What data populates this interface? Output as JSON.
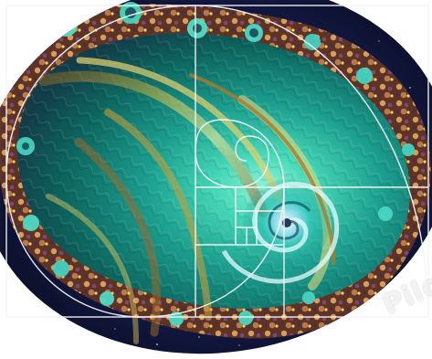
{
  "image": {
    "subject": "fractal-spiral-with-golden-ratio-overlay",
    "palette": {
      "teal": "#3fd2b0",
      "deep_teal": "#0f6e66",
      "gold": "#d8c04a",
      "brown": "#6d3b22",
      "purple": "#5a2f74",
      "navy": "#161b46",
      "white": "#ffffff"
    },
    "overlay": {
      "type": "golden-ratio-spiral-grid",
      "line_color": "#f4f4f4"
    }
  },
  "watermark": {
    "text": "Pilo"
  }
}
